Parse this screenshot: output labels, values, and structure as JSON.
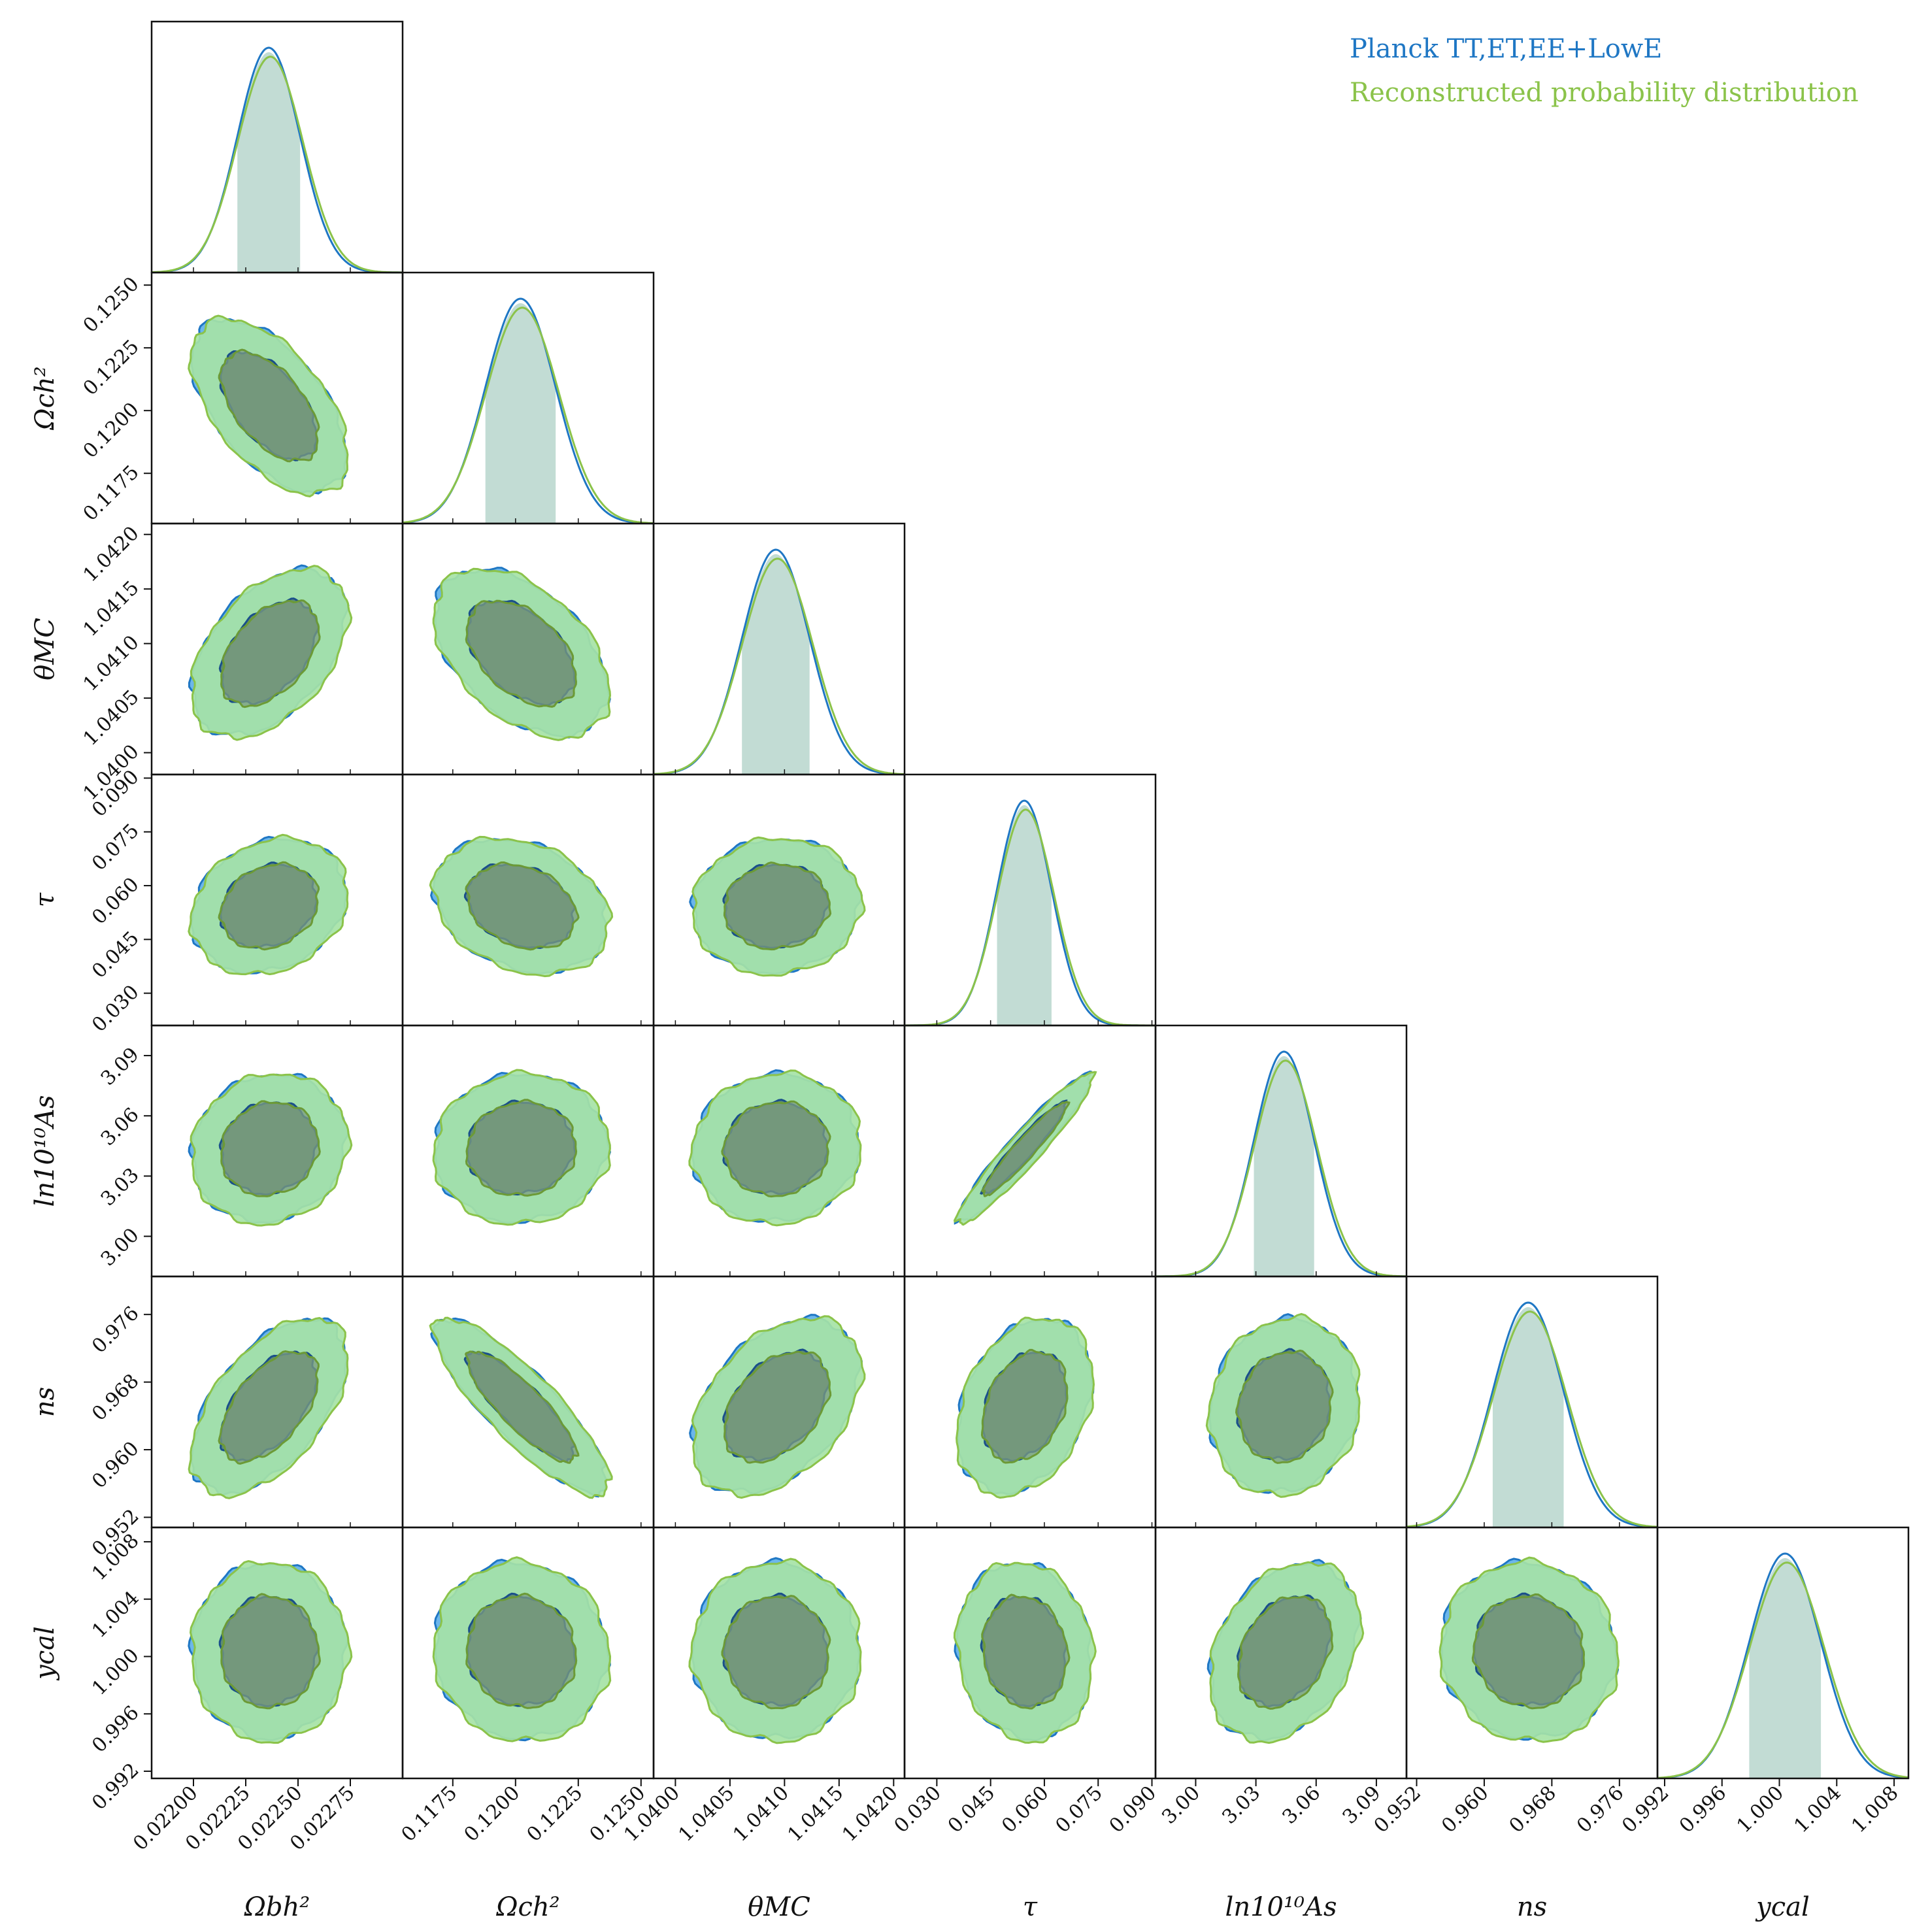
{
  "chart_data": {
    "type": "corner",
    "legend": {
      "position": "top-right",
      "entries": [
        {
          "name": "Planck TT,ET,EE+LowE",
          "color": "#1f77c4"
        },
        {
          "name": "Reconstructed probability distribution",
          "color": "#8bc34a"
        }
      ]
    },
    "parameters": [
      {
        "key": "omega_b",
        "label": "Ωbh²",
        "mean": 0.02236,
        "sigma": 0.00015,
        "range": [
          0.0218,
          0.023
        ],
        "ticks": [
          0.022,
          0.02225,
          0.0225,
          0.02275
        ],
        "tick_labels": [
          "0.02200",
          "0.02225",
          "0.02250",
          "0.02275"
        ]
      },
      {
        "key": "omega_c",
        "label": "Ωch²",
        "mean": 0.1202,
        "sigma": 0.0014,
        "range": [
          0.1155,
          0.1255
        ],
        "ticks": [
          0.1175,
          0.12,
          0.1225,
          0.125
        ],
        "tick_labels": [
          "0.1175",
          "0.1200",
          "0.1225",
          "0.1250"
        ]
      },
      {
        "key": "theta_mc",
        "label": "θMC",
        "mean": 1.04092,
        "sigma": 0.00031,
        "range": [
          1.0398,
          1.0421
        ],
        "ticks": [
          1.04,
          1.0405,
          1.041,
          1.0415,
          1.042
        ],
        "tick_labels": [
          "1.0400",
          "1.0405",
          "1.0410",
          "1.0415",
          "1.0420"
        ]
      },
      {
        "key": "tau",
        "label": "τ",
        "mean": 0.0544,
        "sigma": 0.0076,
        "range": [
          0.021,
          0.091
        ],
        "ticks": [
          0.03,
          0.045,
          0.06,
          0.075,
          0.09
        ],
        "tick_labels": [
          "0.030",
          "0.045",
          "0.060",
          "0.075",
          "0.090"
        ]
      },
      {
        "key": "ln_as",
        "label": "ln10¹⁰As",
        "mean": 3.044,
        "sigma": 0.015,
        "range": [
          2.98,
          3.105
        ],
        "ticks": [
          3.0,
          3.03,
          3.06,
          3.09
        ],
        "tick_labels": [
          "3.00",
          "3.03",
          "3.06",
          "3.09"
        ]
      },
      {
        "key": "n_s",
        "label": "ns",
        "mean": 0.9652,
        "sigma": 0.0042,
        "range": [
          0.9508,
          0.9805
        ],
        "ticks": [
          0.952,
          0.96,
          0.968,
          0.976
        ],
        "tick_labels": [
          "0.952",
          "0.960",
          "0.968",
          "0.976"
        ]
      },
      {
        "key": "y_cal",
        "label": "ycal",
        "mean": 1.0004,
        "sigma": 0.0025,
        "range": [
          0.9915,
          1.009
        ],
        "ticks": [
          0.992,
          0.996,
          1.0,
          1.004,
          1.008
        ],
        "tick_labels": [
          "0.992",
          "0.996",
          "1.000",
          "1.004",
          "1.008"
        ]
      }
    ],
    "correlations": [
      [
        1,
        0,
        0,
        0,
        0,
        0,
        0
      ],
      [
        -0.55,
        1,
        0,
        0,
        0,
        0,
        0
      ],
      [
        0.45,
        -0.45,
        1,
        0,
        0,
        0,
        0
      ],
      [
        0.2,
        -0.25,
        0.05,
        1,
        0,
        0,
        0
      ],
      [
        0.1,
        0.05,
        0.05,
        0.95,
        1,
        0,
        0
      ],
      [
        0.55,
        -0.85,
        0.4,
        0.3,
        0.1,
        1,
        0
      ],
      [
        0,
        -0.05,
        0,
        -0.1,
        0.3,
        -0.05,
        1
      ]
    ]
  }
}
